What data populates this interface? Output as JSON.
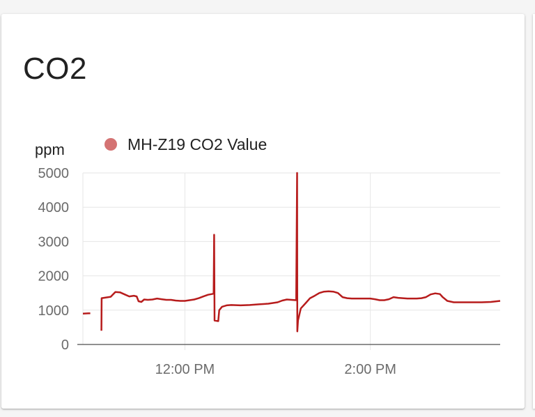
{
  "card": {
    "title": "CO2"
  },
  "chart_data": {
    "type": "line",
    "title": "",
    "xlabel": "",
    "ylabel": "ppm",
    "ylim": [
      0,
      5000
    ],
    "yticks": [
      0,
      1000,
      2000,
      3000,
      4000,
      5000
    ],
    "xlim_hours": [
      10.9,
      15.4
    ],
    "xticks": [
      {
        "hour": 12,
        "label": "12:00 PM"
      },
      {
        "hour": 14,
        "label": "2:00 PM"
      }
    ],
    "grid": true,
    "legend_position": "top",
    "colors": {
      "line": "#b71c1c",
      "legend_marker": "#d47373",
      "grid": "#e6e6e6",
      "axis": "#6b6b6b"
    },
    "series": [
      {
        "name": "MH-Z19 CO2 Value",
        "segments": [
          [
            [
              10.9,
              900
            ],
            [
              10.98,
              910
            ]
          ],
          [
            [
              11.1,
              400
            ],
            [
              11.102,
              1350
            ],
            [
              11.15,
              1370
            ],
            [
              11.2,
              1390
            ],
            [
              11.25,
              1530
            ],
            [
              11.3,
              1520
            ],
            [
              11.35,
              1460
            ],
            [
              11.4,
              1400
            ],
            [
              11.45,
              1420
            ],
            [
              11.48,
              1400
            ],
            [
              11.5,
              1260
            ],
            [
              11.53,
              1240
            ],
            [
              11.56,
              1310
            ],
            [
              11.6,
              1300
            ],
            [
              11.65,
              1310
            ],
            [
              11.7,
              1340
            ],
            [
              11.75,
              1320
            ],
            [
              11.8,
              1300
            ],
            [
              11.85,
              1300
            ],
            [
              11.9,
              1280
            ],
            [
              11.95,
              1270
            ],
            [
              12.0,
              1270
            ],
            [
              12.05,
              1290
            ],
            [
              12.1,
              1310
            ],
            [
              12.15,
              1350
            ],
            [
              12.2,
              1400
            ],
            [
              12.25,
              1450
            ],
            [
              12.31,
              1480
            ],
            [
              12.315,
              3200
            ],
            [
              12.32,
              700
            ],
            [
              12.36,
              680
            ],
            [
              12.37,
              1000
            ],
            [
              12.4,
              1100
            ],
            [
              12.45,
              1140
            ],
            [
              12.5,
              1150
            ],
            [
              12.6,
              1140
            ],
            [
              12.7,
              1150
            ],
            [
              12.8,
              1170
            ],
            [
              12.9,
              1190
            ],
            [
              13.0,
              1230
            ],
            [
              13.05,
              1280
            ],
            [
              13.1,
              1310
            ],
            [
              13.15,
              1300
            ],
            [
              13.2,
              1290
            ],
            [
              13.21,
              5000
            ],
            [
              13.212,
              380
            ],
            [
              13.22,
              700
            ],
            [
              13.25,
              1050
            ],
            [
              13.3,
              1200
            ],
            [
              13.35,
              1350
            ],
            [
              13.4,
              1420
            ],
            [
              13.45,
              1500
            ],
            [
              13.5,
              1540
            ],
            [
              13.55,
              1550
            ],
            [
              13.6,
              1540
            ],
            [
              13.65,
              1500
            ],
            [
              13.7,
              1380
            ],
            [
              13.75,
              1350
            ],
            [
              13.8,
              1340
            ],
            [
              13.9,
              1340
            ],
            [
              14.0,
              1340
            ],
            [
              14.05,
              1320
            ],
            [
              14.1,
              1290
            ],
            [
              14.15,
              1290
            ],
            [
              14.2,
              1320
            ],
            [
              14.25,
              1380
            ],
            [
              14.3,
              1360
            ],
            [
              14.35,
              1350
            ],
            [
              14.4,
              1340
            ],
            [
              14.5,
              1340
            ],
            [
              14.55,
              1350
            ],
            [
              14.6,
              1380
            ],
            [
              14.65,
              1460
            ],
            [
              14.7,
              1490
            ],
            [
              14.75,
              1470
            ],
            [
              14.78,
              1380
            ],
            [
              14.83,
              1270
            ],
            [
              14.9,
              1230
            ],
            [
              15.0,
              1230
            ],
            [
              15.1,
              1230
            ],
            [
              15.2,
              1230
            ],
            [
              15.3,
              1240
            ],
            [
              15.4,
              1270
            ]
          ]
        ]
      }
    ]
  }
}
